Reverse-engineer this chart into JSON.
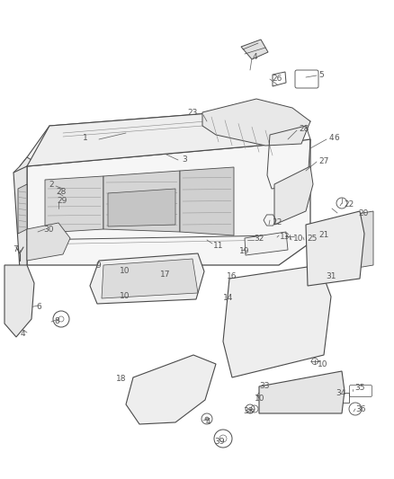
{
  "bg_color": "#ffffff",
  "line_color": "#4a4a4a",
  "label_color": "#555555",
  "fig_width": 4.38,
  "fig_height": 5.33,
  "dpi": 100
}
